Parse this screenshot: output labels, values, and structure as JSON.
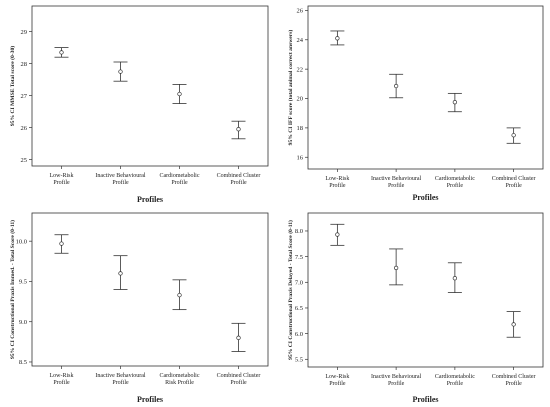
{
  "chart_data": [
    {
      "type": "scatter",
      "error_bars": true,
      "categories": [
        "Low-Risk Profile",
        "Inactive Behavioural Profile",
        "Cardiometabolic Profile",
        "Combined Cluster Profile"
      ],
      "category_lines": [
        [
          "Low-Risk",
          "Profile"
        ],
        [
          "Inactive Behavioural",
          "Profile"
        ],
        [
          "Cardiometabolic",
          "Profile"
        ],
        [
          "Combined Cluster",
          "Profile"
        ]
      ],
      "means": [
        28.35,
        27.75,
        27.05,
        25.95
      ],
      "lower": [
        28.2,
        27.45,
        26.75,
        25.65
      ],
      "upper": [
        28.5,
        28.05,
        27.35,
        26.2
      ],
      "ylim": [
        24.8,
        29.8
      ],
      "yticks": [
        25,
        26,
        27,
        28,
        29
      ],
      "ytick_labels": [
        "25",
        "26",
        "27",
        "28",
        "29"
      ],
      "xlabel": "Profiles",
      "ylabel": "95% CI MMSE Total score (0-30)"
    },
    {
      "type": "scatter",
      "error_bars": true,
      "categories": [
        "Low-Risk Profile",
        "Inactive Behavioural Profile",
        "Cardiometabolic Profile",
        "Combined Cluster Profile"
      ],
      "category_lines": [
        [
          "Low-Risk",
          "Profile"
        ],
        [
          "Inactive Behavioural",
          "Profile"
        ],
        [
          "Cardiometabolic",
          "Profile"
        ],
        [
          "Combined Cluster",
          "Profile"
        ]
      ],
      "means": [
        24.1,
        20.85,
        19.75,
        17.5
      ],
      "lower": [
        23.65,
        20.05,
        19.1,
        16.95
      ],
      "upper": [
        24.6,
        21.65,
        20.35,
        18.0
      ],
      "ylim": [
        15.2,
        26.3
      ],
      "yticks": [
        16,
        18,
        20,
        22,
        24,
        26
      ],
      "ytick_labels": [
        "16",
        "18",
        "20",
        "22",
        "24",
        "26"
      ],
      "xlabel": "Profiles",
      "ylabel": "95% CI IFF score (total animal correct answers)"
    },
    {
      "type": "scatter",
      "error_bars": true,
      "categories": [
        "Low-Risk Profile",
        "Inactive Behavioural Profile",
        "Cardiometabolic Risk Profile",
        "Combined Cluster Profile"
      ],
      "category_lines": [
        [
          "Low-Risk",
          "Profile"
        ],
        [
          "Inactive Behavioural",
          "Profile"
        ],
        [
          "Cardiometabolic",
          "Risk Profile"
        ],
        [
          "Combined Cluster",
          "Profile"
        ]
      ],
      "means": [
        9.97,
        9.6,
        9.33,
        8.8
      ],
      "lower": [
        9.85,
        9.4,
        9.15,
        8.63
      ],
      "upper": [
        10.08,
        9.82,
        9.52,
        8.98
      ],
      "ylim": [
        8.45,
        10.35
      ],
      "yticks": [
        8.5,
        9.0,
        9.5,
        10.0
      ],
      "ytick_labels": [
        "8.5",
        "9.0",
        "9.5",
        "10.0"
      ],
      "xlabel": "Profiles",
      "ylabel": "95% CI Constructional Praxis Immed. - Total Score (0-11)"
    },
    {
      "type": "scatter",
      "error_bars": true,
      "categories": [
        "Low-Risk Profile",
        "Inactive Behavioural Profile",
        "Cardiometabolic Profile",
        "Combined Cluster Profile"
      ],
      "category_lines": [
        [
          "Low-Risk",
          "Profile"
        ],
        [
          "Inactive Behavioural",
          "Profile"
        ],
        [
          "Cardiometabolic",
          "Profile"
        ],
        [
          "Combined Cluster",
          "Profile"
        ]
      ],
      "means": [
        7.93,
        7.28,
        7.08,
        6.18
      ],
      "lower": [
        7.72,
        6.95,
        6.8,
        5.93
      ],
      "upper": [
        8.13,
        7.65,
        7.38,
        6.43
      ],
      "ylim": [
        5.35,
        8.35
      ],
      "yticks": [
        5.5,
        6.0,
        6.5,
        7.0,
        7.5,
        8.0
      ],
      "ytick_labels": [
        "5.5",
        "6.0",
        "6.5",
        "7.0",
        "7.5",
        "8.0"
      ],
      "xlabel": "Profiles",
      "ylabel": "95% CI Constructional Praxis Delayed - Total Score (0-11)"
    }
  ]
}
